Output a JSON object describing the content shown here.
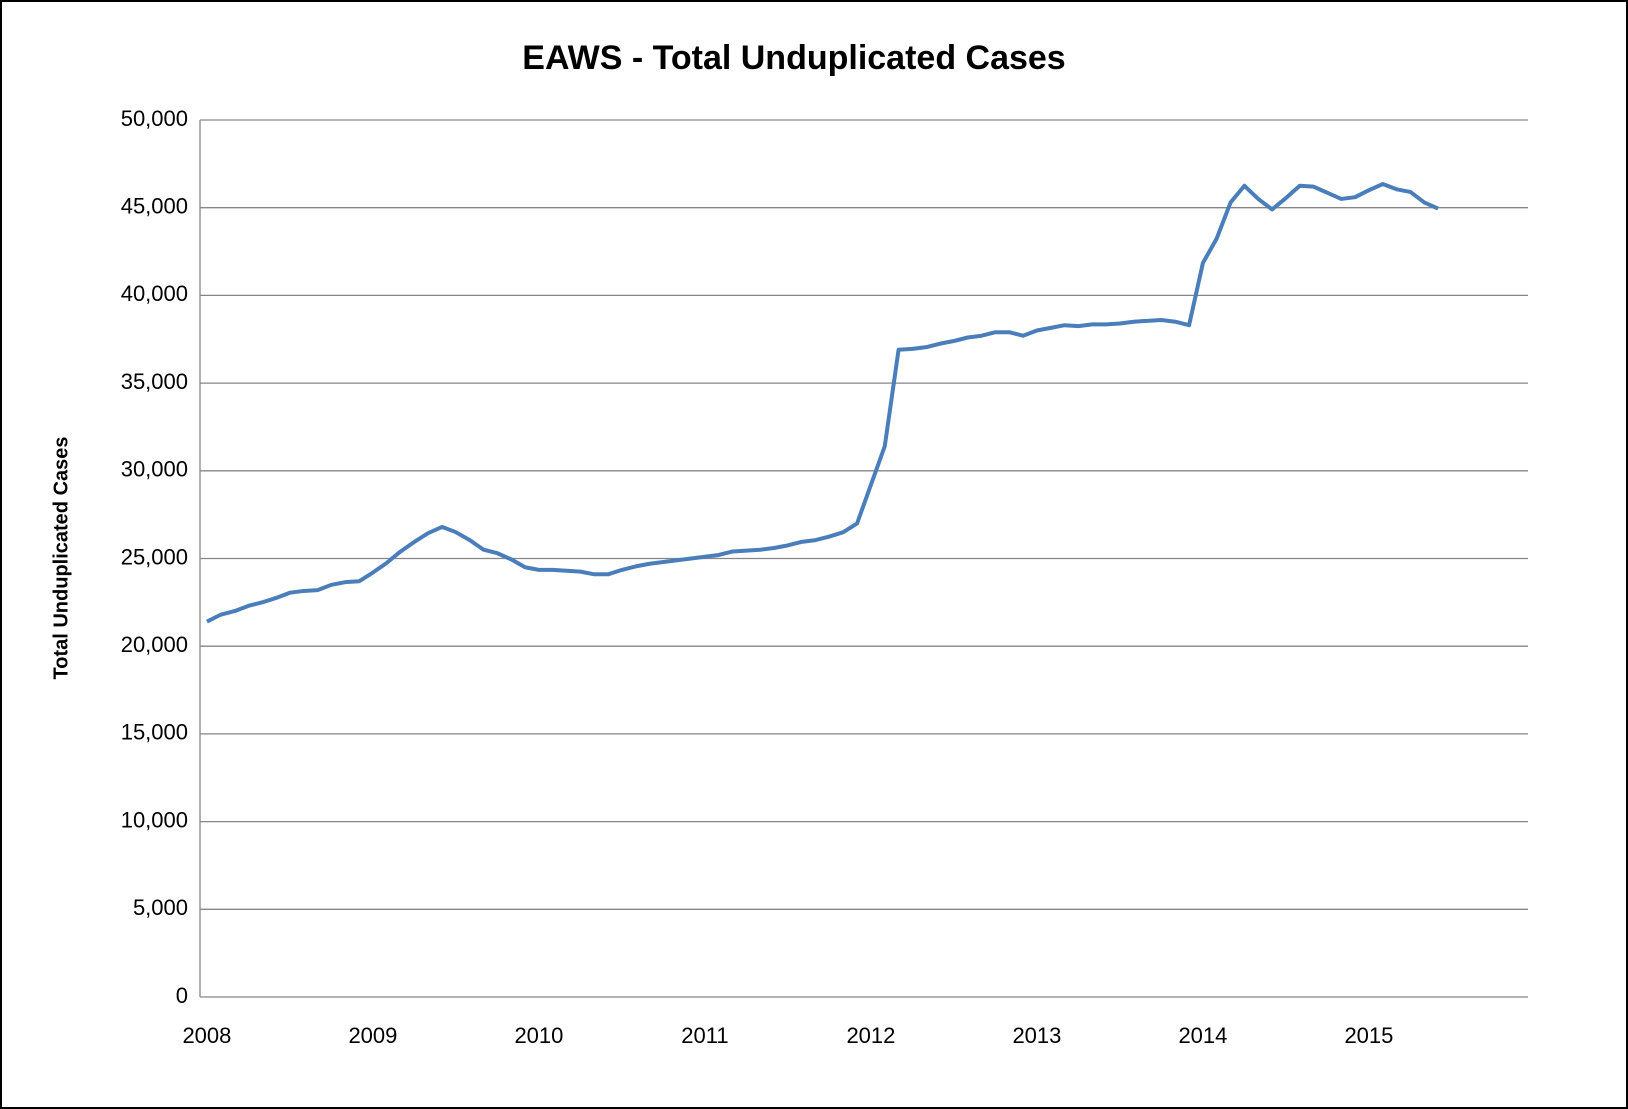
{
  "chart_data": {
    "type": "line",
    "title": "EAWS - Total Unduplicated Cases",
    "y_label": "Total Unduplicated Cases",
    "categories": [
      "2008",
      null,
      null,
      null,
      null,
      null,
      null,
      null,
      null,
      null,
      null,
      null,
      "2009",
      null,
      null,
      null,
      null,
      null,
      null,
      null,
      null,
      null,
      null,
      null,
      "2010",
      null,
      null,
      null,
      null,
      null,
      null,
      null,
      null,
      null,
      null,
      null,
      "2011",
      null,
      null,
      null,
      null,
      null,
      null,
      null,
      null,
      null,
      null,
      null,
      "2012",
      null,
      null,
      null,
      null,
      null,
      null,
      null,
      null,
      null,
      null,
      null,
      "2013",
      null,
      null,
      null,
      null,
      null,
      null,
      null,
      null,
      null,
      null,
      null,
      "2014",
      null,
      null,
      null,
      null,
      null,
      null,
      null,
      null,
      null,
      null,
      null,
      "2015",
      null,
      null,
      null,
      null,
      null,
      null,
      null,
      null,
      null,
      null,
      null
    ],
    "series": [
      {
        "name": "Total Unduplicated Cases",
        "color": "#4a7ebb",
        "values": [
          21400,
          21800,
          22000,
          22300,
          22500,
          22750,
          23050,
          23150,
          23200,
          23500,
          23650,
          23700,
          24200,
          24750,
          25400,
          25950,
          26450,
          26800,
          26500,
          26050,
          25500,
          25300,
          24950,
          24500,
          24350,
          24350,
          24300,
          24250,
          24100,
          24100,
          24350,
          24550,
          24700,
          24800,
          24900,
          25000,
          25100,
          25200,
          25400,
          25450,
          25500,
          25600,
          25750,
          25950,
          26050,
          26250,
          26500,
          27000,
          29200,
          31400,
          36900,
          36950,
          37050,
          37250,
          37400,
          37600,
          37700,
          37900,
          37900,
          37700,
          38000,
          38150,
          38300,
          38250,
          38350,
          38350,
          38400,
          38500,
          38550,
          38600,
          38500,
          38300,
          41850,
          43250,
          45300,
          46250,
          45500,
          44900,
          45550,
          46250,
          46200,
          45850,
          45500,
          45600,
          46000,
          46350,
          46050,
          45900,
          45300,
          44950,
          null,
          null,
          null,
          null,
          null,
          null
        ]
      }
    ],
    "ylim": [
      0,
      50000
    ],
    "yticks": [
      0,
      {
        "value": 5000,
        "label": "5,000"
      },
      {
        "value": 10000,
        "label": "10,000"
      },
      {
        "value": 15000,
        "label": "15,000"
      },
      {
        "value": 20000,
        "label": "20,000"
      },
      {
        "value": 25000,
        "label": "25,000"
      },
      {
        "value": 30000,
        "label": "30,000"
      },
      {
        "value": 35000,
        "label": "35,000"
      },
      {
        "value": 40000,
        "label": "40,000"
      },
      {
        "value": 45000,
        "label": "45,000"
      },
      {
        "value": 50000,
        "label": "50,000"
      }
    ],
    "grid": true
  }
}
